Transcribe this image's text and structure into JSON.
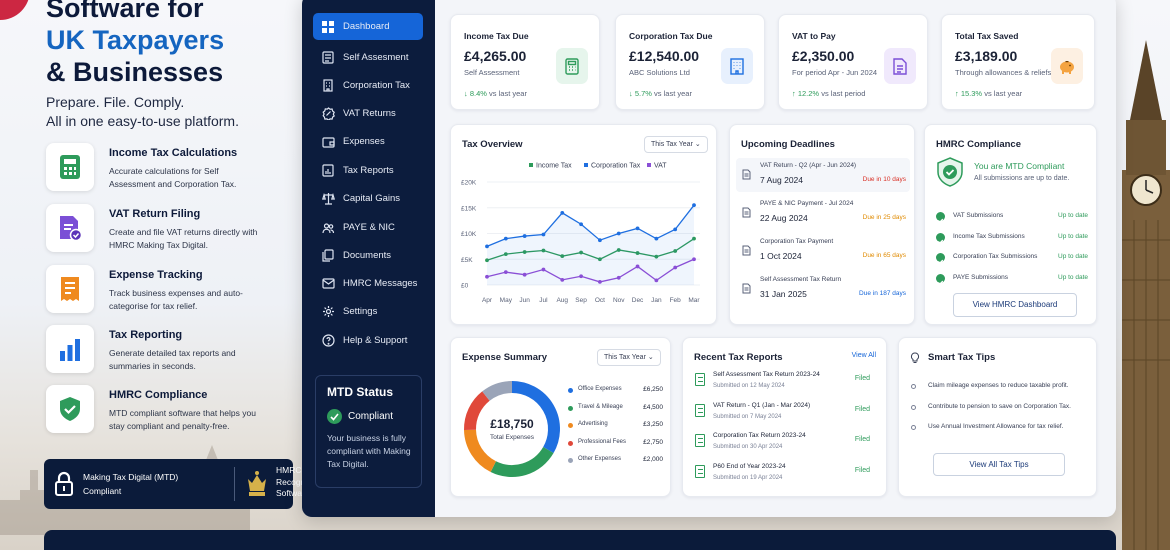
{
  "hero": {
    "title_l1": "Software for",
    "title_l2": "UK Taxpayers",
    "title_l3": "& Businesses",
    "sub1": "Prepare. File. Comply.",
    "sub2": "All in one easy-to-use platform."
  },
  "features": [
    {
      "title": "Income Tax Calculations",
      "desc": "Accurate calculations for Self Assessment and Corporation Tax.",
      "icon": "calculator-icon",
      "color": "#2e9b5b"
    },
    {
      "title": "VAT Return Filing",
      "desc": "Create and file VAT returns directly with HMRC Making Tax Digital.",
      "icon": "document-check-icon",
      "color": "#7b4fd6"
    },
    {
      "title": "Expense Tracking",
      "desc": "Track business expenses and auto-categorise for tax relief.",
      "icon": "receipt-icon",
      "color": "#ef8a1f"
    },
    {
      "title": "Tax Reporting",
      "desc": "Generate detailed tax reports and summaries in seconds.",
      "icon": "bar-chart-icon",
      "color": "#1f6fe0"
    },
    {
      "title": "HMRC Compliance",
      "desc": "MTD compliant software that helps you stay compliant and penalty-free.",
      "icon": "shield-check-icon",
      "color": "#2e9b5b"
    }
  ],
  "badge": {
    "mtd_l1": "Making Tax Digital (MTD)",
    "mtd_l2": "Compliant",
    "hmrc_l1": "HMRC",
    "hmrc_l2": "Recognised",
    "hmrc_l3": "Software"
  },
  "nav": [
    {
      "label": "Dashboard",
      "icon": "grid-icon"
    },
    {
      "label": "Self Assesment",
      "icon": "form-icon"
    },
    {
      "label": "Corporation Tax",
      "icon": "building-icon"
    },
    {
      "label": "VAT Returns",
      "icon": "percent-badge-icon"
    },
    {
      "label": "Expenses",
      "icon": "wallet-icon"
    },
    {
      "label": "Tax Reports",
      "icon": "report-icon"
    },
    {
      "label": "Capital Gains",
      "icon": "scales-icon"
    },
    {
      "label": "PAYE & NIC",
      "icon": "people-icon"
    },
    {
      "label": "Documents",
      "icon": "documents-icon"
    },
    {
      "label": "HMRC Messages",
      "icon": "mail-icon"
    },
    {
      "label": "Settings",
      "icon": "gear-icon"
    },
    {
      "label": "Help & Support",
      "icon": "help-icon"
    }
  ],
  "mtd_status": {
    "title": "MTD Status",
    "status": "Compliant",
    "desc": "Your business is fully compliant with Making Tax Digital."
  },
  "kpis": [
    {
      "title": "Income Tax Due",
      "value": "£4,265.00",
      "sub": "Self Assessment",
      "change": "↓ 8.4%",
      "cmp": "vs last year",
      "icon": "calculator-icon",
      "bg": "#e6f5ec",
      "fg": "#2e9b5b"
    },
    {
      "title": "Corporation Tax Due",
      "value": "£12,540.00",
      "sub": "ABC Solutions Ltd",
      "change": "↓ 5.7%",
      "cmp": "vs last year",
      "icon": "building-icon",
      "bg": "#e7f0fd",
      "fg": "#1f6fe0"
    },
    {
      "title": "VAT to Pay",
      "value": "£2,350.00",
      "sub": "For period Apr - Jun 2024",
      "change": "↑ 12.2%",
      "cmp": "vs last period",
      "icon": "document-icon",
      "bg": "#f0e9fc",
      "fg": "#7b4fd6"
    },
    {
      "title": "Total Tax Saved",
      "value": "£3,189.00",
      "sub": "Through allowances & reliefs",
      "change": "↑ 15.3%",
      "cmp": "vs last year",
      "icon": "piggy-bank-icon",
      "bg": "#fdf0e2",
      "fg": "#ef8a1f"
    }
  ],
  "overview": {
    "title": "Tax Overview",
    "select": "This Tax Year"
  },
  "chart_data": {
    "type": "line",
    "categories": [
      "Apr",
      "May",
      "Jun",
      "Jul",
      "Aug",
      "Sep",
      "Oct",
      "Nov",
      "Dec",
      "Jan",
      "Feb",
      "Mar"
    ],
    "series": [
      {
        "name": "Income Tax",
        "color": "#2e9b5b",
        "values": [
          4800,
          6000,
          6400,
          6700,
          5600,
          6300,
          5000,
          6800,
          6200,
          5500,
          6600,
          9000
        ]
      },
      {
        "name": "Corporation Tax",
        "color": "#1f6fe0",
        "values": [
          7500,
          9000,
          9500,
          9800,
          14000,
          11800,
          8700,
          10000,
          11000,
          9000,
          10800,
          15500
        ]
      },
      {
        "name": "VAT",
        "color": "#8a4fd6",
        "values": [
          1600,
          2500,
          2000,
          3000,
          1000,
          1700,
          600,
          1400,
          3600,
          900,
          3400,
          5000
        ]
      }
    ],
    "ytick_labels": [
      "£20K",
      "£15K",
      "£10K",
      "£5K",
      "£0"
    ],
    "ylim": [
      0,
      20000
    ],
    "grid": true,
    "legend": "top"
  },
  "deadlines": {
    "title": "Upcoming Deadlines",
    "items": [
      {
        "name": "VAT Return - Q2 (Apr - Jun 2024)",
        "date": "7 Aug 2024",
        "due": "Due in 10 days",
        "color": "#d93025"
      },
      {
        "name": "PAYE & NIC Payment - Jul 2024",
        "date": "22 Aug 2024",
        "due": "Due in 25 days",
        "color": "#e08a00"
      },
      {
        "name": "Corporation Tax Payment",
        "date": "1 Oct 2024",
        "due": "Due in 65 days",
        "color": "#e08a00"
      },
      {
        "name": "Self Assessment Tax Return",
        "date": "31 Jan 2025",
        "due": "Due in 187 days",
        "color": "#1565d8"
      }
    ]
  },
  "compliance": {
    "title": "HMRC Compliance",
    "status": "You are MTD Compliant",
    "status_sub": "All submissions are up to date.",
    "button": "View HMRC Dashboard",
    "items": [
      {
        "label": "VAT Submissions",
        "state": "Up to date"
      },
      {
        "label": "Income Tax Submissions",
        "state": "Up to date"
      },
      {
        "label": "Corporation Tax Submissions",
        "state": "Up to date"
      },
      {
        "label": "PAYE Submissions",
        "state": "Up to date"
      }
    ]
  },
  "expense": {
    "title": "Expense Summary",
    "select": "This Tax Year",
    "total": "£18,750",
    "total_label": "Total Expenses",
    "items": [
      {
        "label": "Office Expenses",
        "amount": "£6,250",
        "value": 6250,
        "color": "#1f6fe0"
      },
      {
        "label": "Travel & Mileage",
        "amount": "£4,500",
        "value": 4500,
        "color": "#2e9b5b"
      },
      {
        "label": "Advertising",
        "amount": "£3,250",
        "value": 3250,
        "color": "#ef8a1f"
      },
      {
        "label": "Professional Fees",
        "amount": "£2,750",
        "value": 2750,
        "color": "#e0483a"
      },
      {
        "label": "Other Expenses",
        "amount": "£2,000",
        "value": 2000,
        "color": "#9aa4b8"
      }
    ]
  },
  "reports": {
    "title": "Recent Tax Reports",
    "view_all": "View All",
    "items": [
      {
        "name": "Self Assessment Tax Return 2023-24",
        "date": "Submitted on 12 May 2024",
        "state": "Filed"
      },
      {
        "name": "VAT Return - Q1 (Jan - Mar 2024)",
        "date": "Submitted on 7 May 2024",
        "state": "Filed"
      },
      {
        "name": "Corporation Tax Return 2023-24",
        "date": "Submitted on 30 Apr 2024",
        "state": "Filed"
      },
      {
        "name": "P60 End of Year 2023-24",
        "date": "Submitted on 19 Apr 2024",
        "state": "Filed"
      }
    ]
  },
  "tips": {
    "title": "Smart Tax Tips",
    "button": "View All Tax Tips",
    "items": [
      "Claim mileage expenses to reduce taxable profit.",
      "Contribute to pension to save on Corporation Tax.",
      "Use Annual Investment Allowance for tax relief."
    ]
  }
}
